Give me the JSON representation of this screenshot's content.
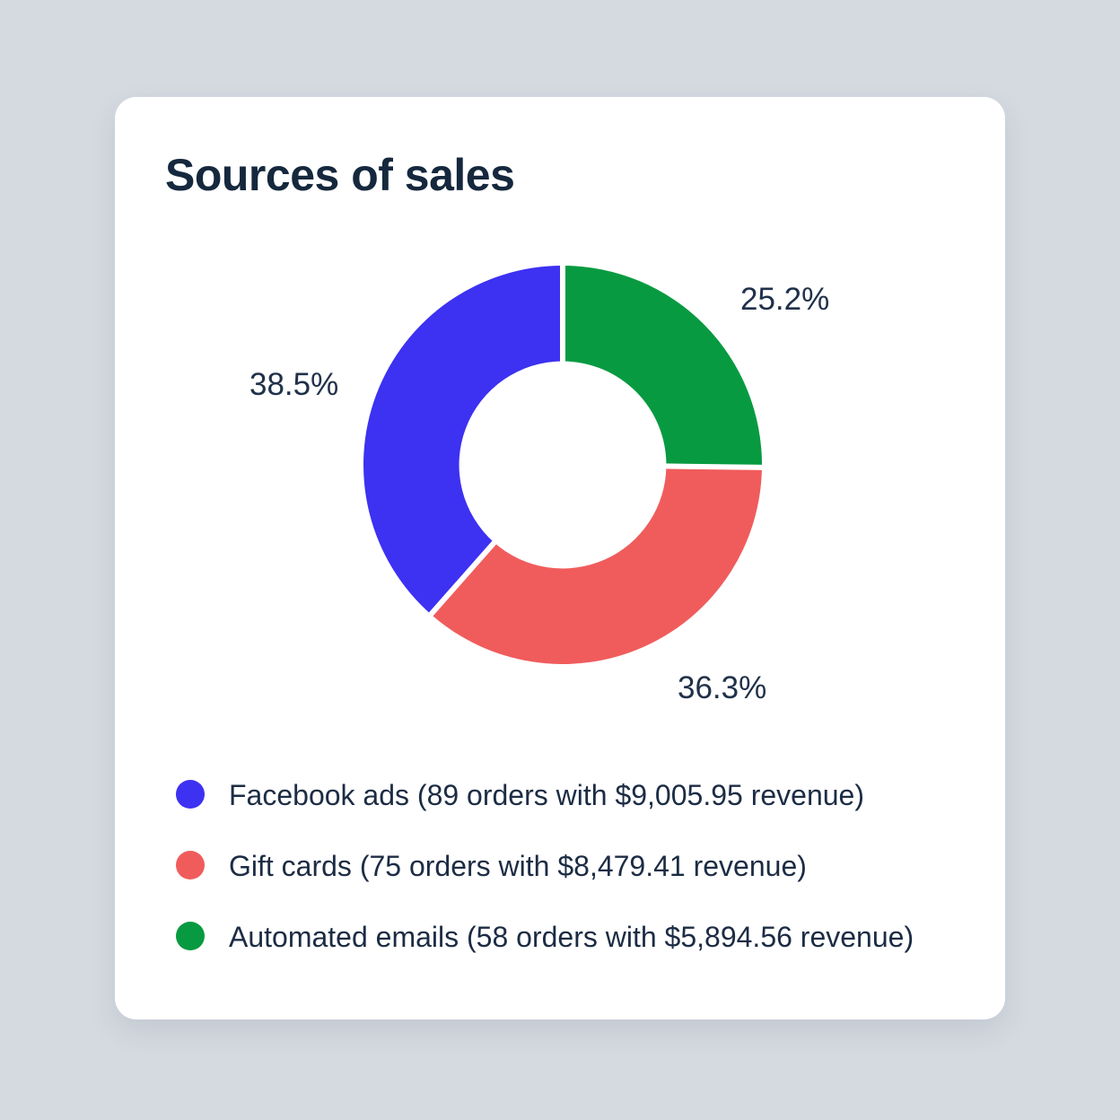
{
  "page": {
    "background_color": "#d5dae1",
    "card_color": "#ffffff"
  },
  "card": {
    "title": "Sources of sales"
  },
  "chart_data": {
    "type": "pie",
    "subtype": "donut",
    "title": "Sources of sales",
    "direction_from_top": "blue counter-clockwise / green clockwise",
    "inner_radius_ratio": 0.52,
    "legend_position": "bottom-left",
    "text_color": "#20314a",
    "gap_color": "#ffffff",
    "segments": [
      {
        "name": "Facebook ads",
        "percent": 38.5,
        "percent_label": "38.5%",
        "orders": 89,
        "revenue": "$9,005.95",
        "color": "#3d31f2",
        "legend_label": "Facebook ads (89 orders with $9,005.95 revenue)"
      },
      {
        "name": "Gift cards",
        "percent": 36.3,
        "percent_label": "36.3%",
        "orders": 75,
        "revenue": "$8,479.41",
        "color": "#f05c5c",
        "legend_label": "Gift cards (75 orders with $8,479.41 revenue)"
      },
      {
        "name": "Automated emails",
        "percent": 25.2,
        "percent_label": "25.2%",
        "orders": 58,
        "revenue": "$5,894.56",
        "color": "#089a41",
        "legend_label": "Automated emails (58 orders with $5,894.56 revenue)"
      }
    ]
  }
}
